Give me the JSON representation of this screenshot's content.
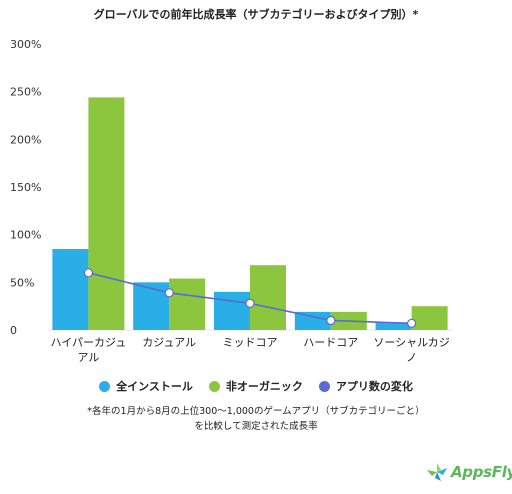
{
  "chart_data": {
    "type": "bar",
    "title": "グローバルでの前年比成長率（サブカテゴリーおよびタイプ別）*",
    "categories": [
      [
        "ハイパーカジュ",
        "アル"
      ],
      [
        "カジュアル"
      ],
      [
        "ミッドコア"
      ],
      [
        "ハードコア"
      ],
      [
        "ソーシャルカジ",
        "ノ"
      ]
    ],
    "yticks": [
      "0",
      "50%",
      "100%",
      "150%",
      "200%",
      "250%",
      "300%"
    ],
    "ylim": [
      0,
      300
    ],
    "series": [
      {
        "name": "全インストール",
        "type": "bar",
        "color": "#29aee8",
        "values": [
          85,
          50,
          40,
          19,
          8
        ]
      },
      {
        "name": "非オーガニック",
        "type": "bar",
        "color": "#8cc63f",
        "values": [
          244,
          54,
          68,
          19,
          25
        ]
      },
      {
        "name": "アプリ数の変化",
        "type": "line",
        "color": "#5b6bd1",
        "values": [
          60,
          39,
          28,
          10,
          7
        ]
      }
    ],
    "grid": false,
    "legend_position": "bottom"
  },
  "footnote": [
    "*各年の1月から8月の上位300〜1,000のゲームアプリ（サブカテゴリーごと）",
    "を比較して測定された成長率"
  ],
  "brand": {
    "name": "AppsFlyer",
    "color": "#5cb85c"
  }
}
